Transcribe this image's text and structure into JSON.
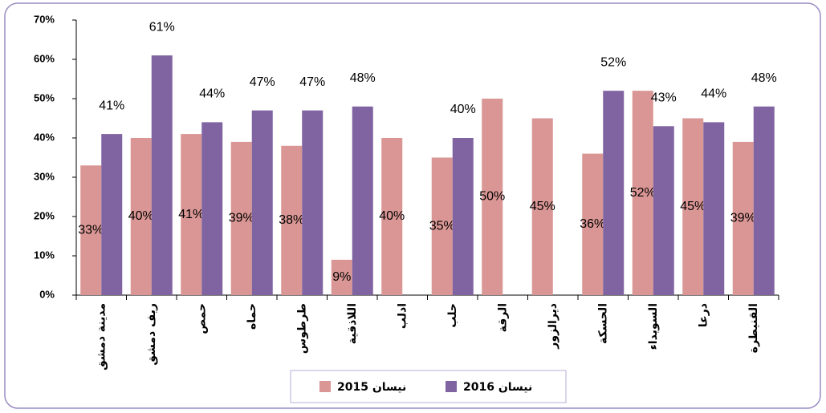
{
  "chart_data": {
    "type": "bar",
    "categories": [
      "مدينة دمشق",
      "ريف دمشق",
      "حمص",
      "حماه",
      "طرطوس",
      "اللاذقية",
      "ادلب",
      "حلب",
      "الرقة",
      "ديرالزور",
      "الحسكة",
      "السويداء",
      "درعا",
      "القنيطرة"
    ],
    "series": [
      {
        "name": "نيسان 2015",
        "color": "#d99694",
        "values": [
          33,
          40,
          41,
          39,
          38,
          9,
          40,
          35,
          50,
          45,
          36,
          52,
          45,
          39
        ],
        "value_labels": [
          "33%",
          "40%",
          "41%",
          "39%",
          "38%",
          "9%",
          "40%",
          "35%",
          "50%",
          "45%",
          "36%",
          "52%",
          "45%",
          "39%"
        ]
      },
      {
        "name": "نيسان 2016",
        "color": "#8064a2",
        "values": [
          41,
          61,
          44,
          47,
          47,
          48,
          null,
          40,
          null,
          null,
          52,
          43,
          44,
          48
        ],
        "value_labels": [
          "41%",
          "61%",
          "44%",
          "47%",
          "47%",
          "48%",
          null,
          "40%",
          null,
          null,
          "52%",
          "43%",
          "44%",
          "48%"
        ]
      }
    ],
    "ylim": [
      0,
      70
    ],
    "yticks": [
      {
        "value": 0,
        "label": "0%"
      },
      {
        "value": 10,
        "label": "10%"
      },
      {
        "value": 20,
        "label": "20%"
      },
      {
        "value": 30,
        "label": "30%"
      },
      {
        "value": 40,
        "label": "40%"
      },
      {
        "value": 50,
        "label": "50%"
      },
      {
        "value": 60,
        "label": "60%"
      },
      {
        "value": 70,
        "label": "70%"
      }
    ],
    "grid": false
  }
}
